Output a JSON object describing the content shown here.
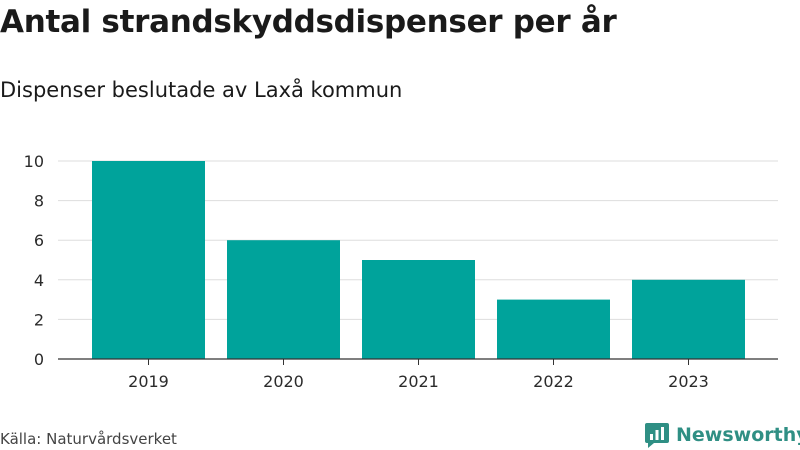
{
  "title": "Antal strandskyddsdispenser per år",
  "subtitle": "Dispenser beslutade av Laxå kommun",
  "source": "Källa: Naturvårdsverket",
  "brand": {
    "name": "Newsworthy",
    "logo_icon": "newsworthy-logo-icon",
    "color": "#2f8f84"
  },
  "colors": {
    "bar": "#00a39b",
    "grid": "#dddddd",
    "axis": "#333333"
  },
  "chart_data": {
    "type": "bar",
    "title": "Antal strandskyddsdispenser per år",
    "subtitle": "Dispenser beslutade av Laxå kommun",
    "categories": [
      "2019",
      "2020",
      "2021",
      "2022",
      "2023"
    ],
    "values": [
      10,
      6,
      5,
      3,
      4
    ],
    "xlabel": "",
    "ylabel": "",
    "ylim": [
      0,
      10
    ],
    "yticks": [
      0,
      2,
      4,
      6,
      8,
      10
    ],
    "grid": true,
    "legend": "none"
  }
}
